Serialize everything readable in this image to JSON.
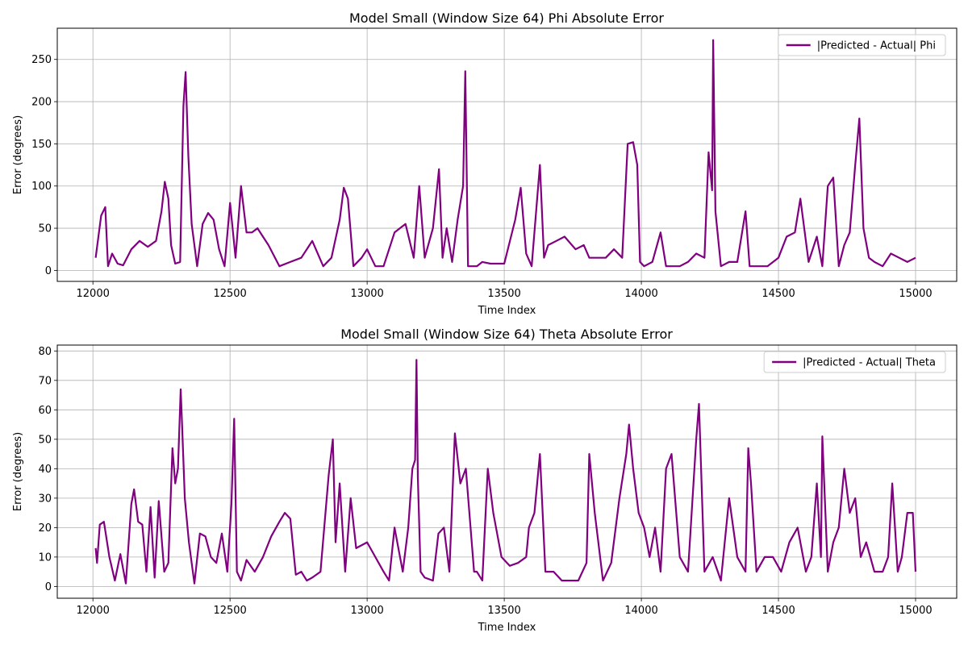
{
  "chart_data": [
    {
      "type": "line",
      "title": "Model Small (Window Size 64) Phi Absolute Error",
      "xlabel": "Time Index",
      "ylabel": "Error (degrees)",
      "xlim": [
        11870,
        15150
      ],
      "ylim": [
        -13,
        287
      ],
      "xticks": [
        12000,
        12500,
        13000,
        13500,
        14000,
        14500,
        15000
      ],
      "yticks": [
        0,
        50,
        100,
        150,
        200,
        250
      ],
      "grid": true,
      "legend_position": "top-right",
      "series": [
        {
          "name": "|Predicted - Actual| Phi",
          "color": "#800080",
          "x": [
            12010,
            12020,
            12030,
            12045,
            12055,
            12070,
            12090,
            12110,
            12140,
            12170,
            12200,
            12230,
            12250,
            12262,
            12275,
            12285,
            12300,
            12318,
            12330,
            12338,
            12348,
            12360,
            12380,
            12400,
            12420,
            12440,
            12460,
            12480,
            12500,
            12520,
            12540,
            12560,
            12580,
            12600,
            12640,
            12680,
            12720,
            12760,
            12800,
            12840,
            12870,
            12900,
            12915,
            12930,
            12950,
            12980,
            13000,
            13030,
            13060,
            13100,
            13140,
            13170,
            13190,
            13210,
            13240,
            13262,
            13275,
            13290,
            13310,
            13330,
            13350,
            13358,
            13368,
            13380,
            13400,
            13420,
            13450,
            13500,
            13540,
            13560,
            13580,
            13600,
            13630,
            13645,
            13660,
            13690,
            13720,
            13760,
            13790,
            13810,
            13840,
            13870,
            13900,
            13930,
            13950,
            13970,
            13985,
            13995,
            14010,
            14040,
            14070,
            14090,
            14110,
            14140,
            14170,
            14200,
            14230,
            14245,
            14258,
            14262,
            14270,
            14290,
            14320,
            14350,
            14380,
            14395,
            14420,
            14460,
            14500,
            14530,
            14560,
            14580,
            14610,
            14640,
            14660,
            14680,
            14700,
            14720,
            14740,
            14760,
            14780,
            14795,
            14810,
            14830,
            14850,
            14880,
            14910,
            14940,
            14970,
            15000
          ],
          "y": [
            15,
            40,
            65,
            75,
            5,
            20,
            8,
            6,
            25,
            35,
            28,
            35,
            70,
            105,
            85,
            30,
            8,
            10,
            195,
            235,
            135,
            55,
            5,
            55,
            68,
            60,
            25,
            5,
            80,
            15,
            100,
            45,
            45,
            50,
            30,
            5,
            10,
            15,
            35,
            5,
            15,
            60,
            98,
            85,
            5,
            15,
            25,
            5,
            5,
            45,
            55,
            15,
            100,
            15,
            50,
            120,
            15,
            50,
            10,
            60,
            100,
            236,
            5,
            5,
            5,
            10,
            8,
            8,
            60,
            98,
            20,
            5,
            125,
            15,
            30,
            35,
            40,
            25,
            30,
            15,
            15,
            15,
            25,
            15,
            150,
            152,
            125,
            10,
            5,
            10,
            45,
            5,
            5,
            5,
            10,
            20,
            15,
            140,
            95,
            273,
            70,
            5,
            10,
            10,
            70,
            5,
            5,
            5,
            15,
            40,
            45,
            85,
            10,
            40,
            5,
            100,
            110,
            5,
            30,
            45,
            125,
            180,
            50,
            15,
            10,
            5,
            20,
            15,
            10,
            15
          ]
        }
      ]
    },
    {
      "type": "line",
      "title": "Model Small (Window Size 64) Theta Absolute Error",
      "xlabel": "Time Index",
      "ylabel": "Error (degrees)",
      "xlim": [
        11870,
        15150
      ],
      "ylim": [
        -4,
        82
      ],
      "xticks": [
        12000,
        12500,
        13000,
        13500,
        14000,
        14500,
        15000
      ],
      "yticks": [
        0,
        10,
        20,
        30,
        40,
        50,
        60,
        70,
        80
      ],
      "grid": true,
      "legend_position": "top-right",
      "series": [
        {
          "name": "|Predicted - Actual| Theta",
          "color": "#800080",
          "x": [
            12010,
            12015,
            12025,
            12040,
            12060,
            12080,
            12100,
            12120,
            12140,
            12150,
            12165,
            12180,
            12195,
            12210,
            12225,
            12240,
            12260,
            12275,
            12290,
            12300,
            12310,
            12320,
            12325,
            12335,
            12350,
            12370,
            12390,
            12410,
            12430,
            12450,
            12470,
            12490,
            12505,
            12515,
            12525,
            12540,
            12560,
            12590,
            12620,
            12650,
            12680,
            12700,
            12720,
            12740,
            12760,
            12780,
            12800,
            12830,
            12860,
            12875,
            12885,
            12900,
            12920,
            12940,
            12960,
            13000,
            13030,
            13060,
            13080,
            13100,
            13130,
            13150,
            13165,
            13175,
            13180,
            13185,
            13195,
            13210,
            13240,
            13260,
            13280,
            13300,
            13320,
            13340,
            13360,
            13390,
            13400,
            13420,
            13440,
            13460,
            13490,
            13520,
            13550,
            13580,
            13590,
            13610,
            13630,
            13650,
            13680,
            13710,
            13740,
            13770,
            13800,
            13810,
            13830,
            13860,
            13890,
            13920,
            13945,
            13955,
            13970,
            13990,
            14010,
            14030,
            14050,
            14070,
            14090,
            14110,
            14140,
            14170,
            14200,
            14210,
            14230,
            14260,
            14290,
            14320,
            14350,
            14380,
            14390,
            14400,
            14420,
            14450,
            14480,
            14510,
            14540,
            14570,
            14600,
            14620,
            14640,
            14655,
            14660,
            14680,
            14700,
            14720,
            14740,
            14760,
            14780,
            14800,
            14820,
            14850,
            14880,
            14900,
            14915,
            14935,
            14950,
            14970,
            14990,
            15000
          ],
          "y": [
            13,
            8,
            21,
            22,
            10,
            2,
            11,
            1,
            28,
            33,
            22,
            21,
            5,
            27,
            3,
            29,
            5,
            8,
            47,
            35,
            40,
            67,
            55,
            30,
            15,
            1,
            18,
            17,
            10,
            8,
            18,
            5,
            28,
            57,
            5,
            2,
            9,
            5,
            10,
            17,
            22,
            25,
            23,
            4,
            5,
            2,
            3,
            5,
            38,
            50,
            15,
            35,
            5,
            30,
            13,
            15,
            10,
            5,
            2,
            20,
            5,
            20,
            40,
            43,
            77,
            37,
            5,
            3,
            2,
            18,
            20,
            5,
            52,
            35,
            40,
            5,
            5,
            2,
            40,
            25,
            10,
            7,
            8,
            10,
            20,
            25,
            45,
            5,
            5,
            2,
            2,
            2,
            8,
            45,
            25,
            2,
            8,
            30,
            45,
            55,
            40,
            25,
            20,
            10,
            20,
            5,
            40,
            45,
            10,
            5,
            50,
            62,
            5,
            10,
            2,
            30,
            10,
            5,
            47,
            35,
            5,
            10,
            10,
            5,
            15,
            20,
            5,
            10,
            35,
            10,
            51,
            5,
            15,
            20,
            40,
            25,
            30,
            10,
            15,
            5,
            5,
            10,
            35,
            5,
            10,
            25,
            25,
            5
          ]
        }
      ]
    }
  ]
}
